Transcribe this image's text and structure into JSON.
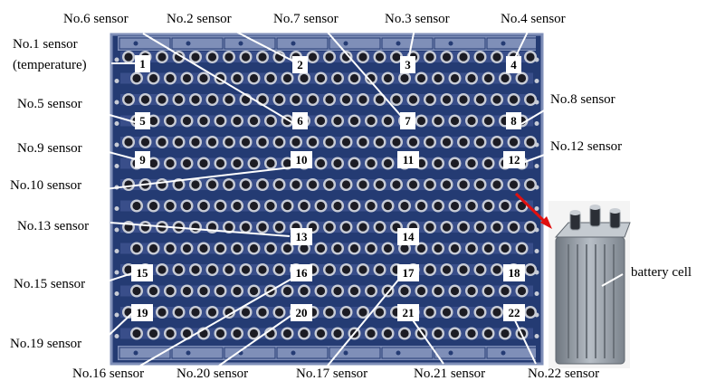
{
  "diagram": {
    "sensors": [
      {
        "id": "1",
        "marker": "1",
        "label": "No.1 sensor",
        "note": "(temperature)"
      },
      {
        "id": "2",
        "marker": "2",
        "label": "No.2 sensor"
      },
      {
        "id": "3",
        "marker": "3",
        "label": "No.3 sensor"
      },
      {
        "id": "4",
        "marker": "4",
        "label": "No.4 sensor"
      },
      {
        "id": "5",
        "marker": "5",
        "label": "No.5 sensor"
      },
      {
        "id": "6",
        "marker": "6",
        "label": "No.6 sensor"
      },
      {
        "id": "7",
        "marker": "7",
        "label": "No.7 sensor"
      },
      {
        "id": "8",
        "marker": "8",
        "label": "No.8 sensor"
      },
      {
        "id": "9",
        "marker": "9",
        "label": "No.9 sensor"
      },
      {
        "id": "10",
        "marker": "10",
        "label": "No.10 sensor"
      },
      {
        "id": "11",
        "marker": "11"
      },
      {
        "id": "12",
        "marker": "12",
        "label": "No.12 sensor"
      },
      {
        "id": "13",
        "marker": "13",
        "label": "No.13 sensor"
      },
      {
        "id": "14",
        "marker": "14"
      },
      {
        "id": "15",
        "marker": "15",
        "label": "No.15 sensor"
      },
      {
        "id": "16",
        "marker": "16",
        "label": "No.16 sensor"
      },
      {
        "id": "17",
        "marker": "17",
        "label": "No.17 sensor"
      },
      {
        "id": "18",
        "marker": "18"
      },
      {
        "id": "19",
        "marker": "19",
        "label": "No.19 sensor"
      },
      {
        "id": "20",
        "marker": "20",
        "label": "No.20 sensor"
      },
      {
        "id": "21",
        "marker": "21",
        "label": "No.21 sensor"
      },
      {
        "id": "22",
        "marker": "22",
        "label": "No.22 sensor"
      }
    ],
    "battery_cell_label": "battery cell",
    "colors": {
      "pack": "#243b73",
      "pack_stripe": "#4b5f9c",
      "cell_outer": "#c8ccd6",
      "cell_inner": "#1c1c24",
      "rail": "#7f8fb8",
      "marker_bg": "#ffffff",
      "leader": "#ffffff",
      "arrow": "#e01010",
      "battery_body": "#9aa3ad"
    }
  }
}
